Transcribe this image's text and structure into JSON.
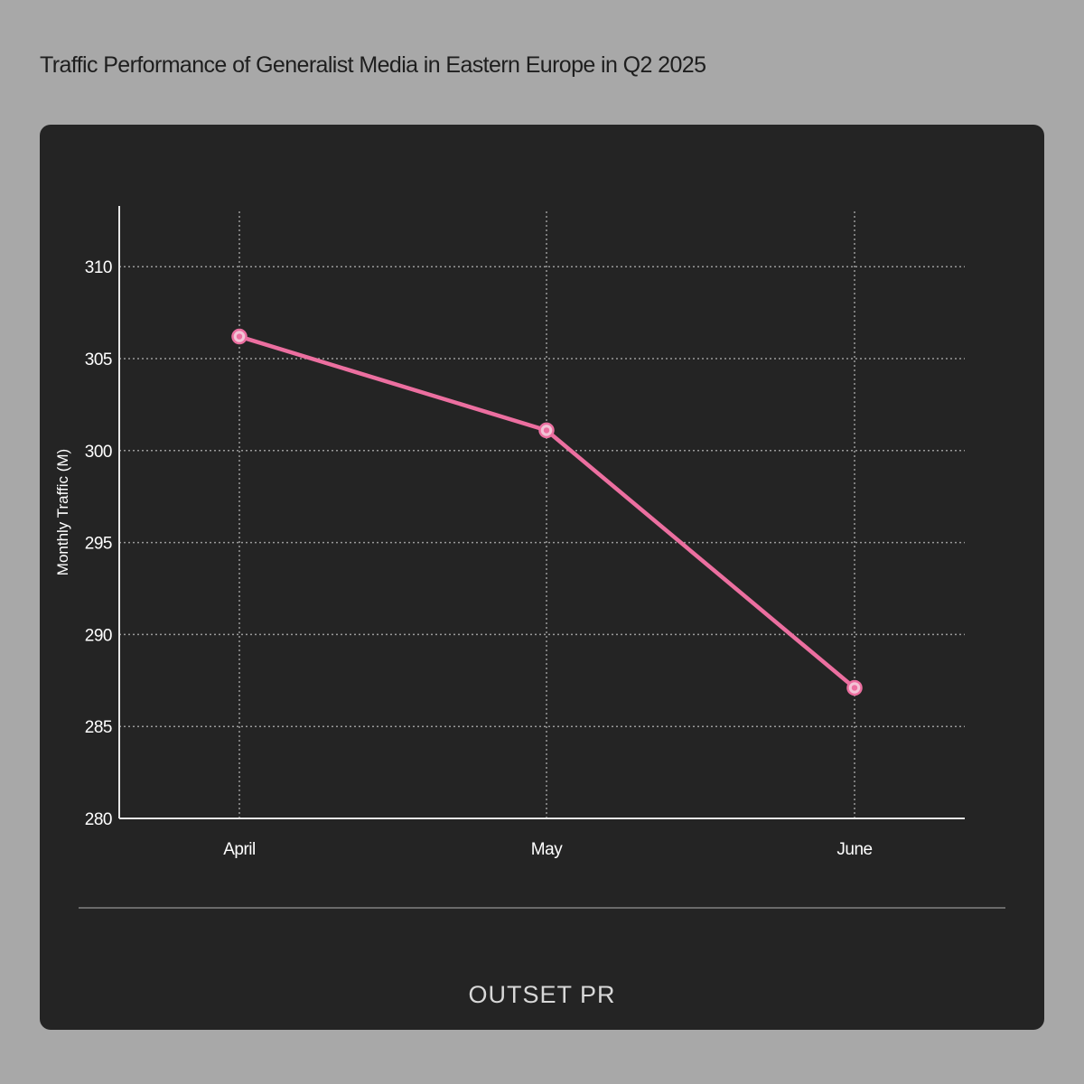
{
  "header": {
    "title": "Traffic Performance of Generalist Media in Eastern Europe in Q2 2025"
  },
  "footer": {
    "logo_text": "OUTSET PR"
  },
  "colors": {
    "background": "#a8a8a8",
    "card": "#242424",
    "line": "#ec6fa0",
    "grid": "#9a9a9a",
    "text": "#ffffff"
  },
  "chart_data": {
    "type": "line",
    "title": "",
    "xlabel": "",
    "ylabel": "Monthly Traffic (M)",
    "categories": [
      "April",
      "May",
      "June"
    ],
    "series": [
      {
        "values": [
          306.2,
          301.1,
          287.1
        ]
      }
    ],
    "ylim": [
      280,
      313.3
    ],
    "yticks": [
      280,
      285,
      290,
      295,
      300,
      305,
      310
    ],
    "grid": true,
    "legend": "none"
  }
}
